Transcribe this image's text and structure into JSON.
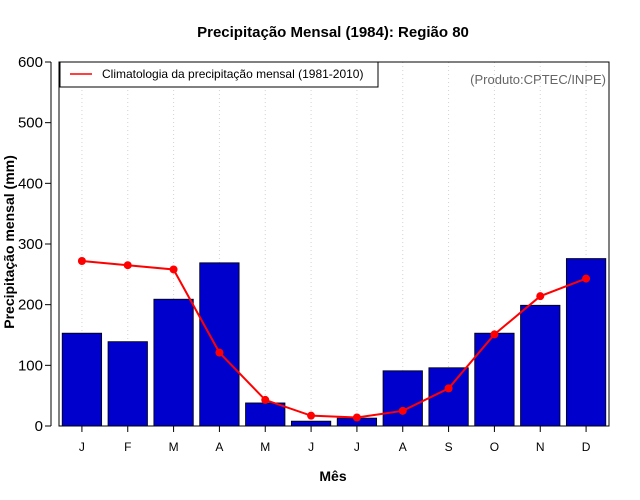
{
  "chart_data": {
    "type": "bar",
    "title": "Precipitação Mensal (1984): Região 80",
    "xlabel": "Mês",
    "ylabel": "Precipitação mensal (mm)",
    "ylim": [
      0,
      600
    ],
    "yticks": [
      0,
      100,
      200,
      300,
      400,
      500,
      600
    ],
    "categories": [
      "J",
      "F",
      "M",
      "A",
      "M",
      "J",
      "J",
      "A",
      "S",
      "O",
      "N",
      "D"
    ],
    "series": [
      {
        "name": "Precipitação mensal 1984",
        "kind": "bar",
        "color": "#0000cc",
        "values": [
          153,
          139,
          209,
          269,
          38,
          8,
          13,
          91,
          96,
          153,
          199,
          276
        ]
      },
      {
        "name": "Climatologia da precipitação mensal (1981-2010)",
        "kind": "line",
        "color": "#ff0000",
        "values": [
          272,
          265,
          258,
          121,
          43,
          17,
          14,
          25,
          62,
          151,
          214,
          243
        ]
      }
    ],
    "legend": {
      "position": "top-left",
      "label": "Climatologia da precipitação mensal (1981-2010)"
    },
    "grid": "vertical-dotted",
    "credit": "(Produto:CPTEC/INPE)"
  }
}
